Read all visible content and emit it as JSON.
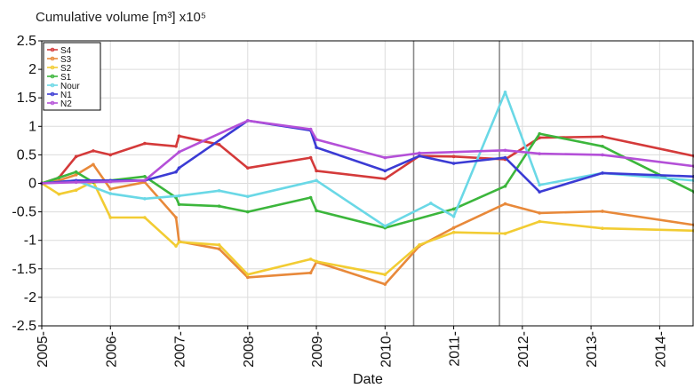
{
  "chart_data": {
    "type": "line",
    "title": "Cumulative volume [m³] x10⁵",
    "xlabel": "Date",
    "ylabel": "",
    "ylim": [
      -2.5,
      2.5
    ],
    "yticks": [
      "2.5",
      "2",
      "1.5",
      "1",
      "0.5",
      "0",
      "-0.5",
      "-1",
      "-1.5",
      "-2",
      "-2.5"
    ],
    "xlim": [
      "2005-01-01",
      "2014-07-01"
    ],
    "xticks": [
      "2005-",
      "2006-",
      "2007-",
      "2008-",
      "2009-",
      "2010-",
      "2011-",
      "2012-",
      "2013-",
      "2014-"
    ],
    "grid": true,
    "legend_position": "top-left",
    "vertical_lines": [
      "2010-06-01",
      "2011-09-01"
    ],
    "series": [
      {
        "name": "S4",
        "color": "#d43a3a",
        "x": [
          "2005-01-01",
          "2005-04-01",
          "2005-07-01",
          "2005-10-01",
          "2006-01-01",
          "2006-07-01",
          "2006-12-15",
          "2007-01-01",
          "2007-08-01",
          "2008-01-01",
          "2008-12-01",
          "2009-01-01",
          "2010-01-01",
          "2010-07-01",
          "2011-01-01",
          "2011-10-01",
          "2012-04-01",
          "2013-03-01",
          "2014-07-01"
        ],
        "y": [
          0,
          0.1,
          0.47,
          0.57,
          0.5,
          0.7,
          0.65,
          0.83,
          0.68,
          0.27,
          0.45,
          0.22,
          0.08,
          0.48,
          0.47,
          0.42,
          0.8,
          0.82,
          0.48
        ]
      },
      {
        "name": "S3",
        "color": "#e8893a",
        "x": [
          "2005-01-01",
          "2005-04-01",
          "2005-07-01",
          "2005-10-01",
          "2006-01-01",
          "2006-07-01",
          "2006-12-15",
          "2007-01-01",
          "2007-08-01",
          "2008-01-01",
          "2008-12-01",
          "2009-01-01",
          "2010-01-01",
          "2010-07-01",
          "2011-01-01",
          "2011-10-01",
          "2012-04-01",
          "2013-03-01",
          "2014-07-01"
        ],
        "y": [
          0,
          0.05,
          0.15,
          0.33,
          -0.1,
          0.02,
          -0.6,
          -1.02,
          -1.15,
          -1.65,
          -1.57,
          -1.38,
          -1.77,
          -1.1,
          -0.78,
          -0.36,
          -0.52,
          -0.49,
          -0.73
        ]
      },
      {
        "name": "S2",
        "color": "#f2cc33",
        "x": [
          "2005-01-01",
          "2005-04-01",
          "2005-07-01",
          "2005-10-01",
          "2006-01-01",
          "2006-07-01",
          "2006-12-15",
          "2007-01-01",
          "2007-08-01",
          "2008-01-01",
          "2008-12-01",
          "2009-01-01",
          "2010-01-01",
          "2010-07-01",
          "2011-01-01",
          "2011-10-01",
          "2012-04-01",
          "2013-03-01",
          "2014-07-01"
        ],
        "y": [
          0,
          -0.19,
          -0.12,
          0.03,
          -0.6,
          -0.6,
          -1.1,
          -1.03,
          -1.08,
          -1.6,
          -1.33,
          -1.37,
          -1.6,
          -1.08,
          -0.86,
          -0.88,
          -0.67,
          -0.79,
          -0.83
        ]
      },
      {
        "name": "S1",
        "color": "#3cb63c",
        "x": [
          "2005-01-01",
          "2005-04-01",
          "2005-07-01",
          "2005-10-01",
          "2006-01-01",
          "2006-07-01",
          "2006-12-15",
          "2007-01-01",
          "2007-08-01",
          "2008-01-01",
          "2008-12-01",
          "2009-01-01",
          "2010-01-01",
          "2011-01-01",
          "2011-10-01",
          "2012-04-01",
          "2013-03-01",
          "2014-07-01"
        ],
        "y": [
          0,
          0.1,
          0.2,
          0.02,
          0.05,
          0.12,
          -0.25,
          -0.37,
          -0.4,
          -0.5,
          -0.25,
          -0.48,
          -0.78,
          -0.45,
          -0.05,
          0.87,
          0.65,
          -0.15
        ]
      },
      {
        "name": "Nour",
        "color": "#6ad8e6",
        "x": [
          "2005-01-01",
          "2005-07-01",
          "2006-01-01",
          "2006-07-01",
          "2007-01-01",
          "2007-08-01",
          "2008-01-01",
          "2009-01-01",
          "2010-01-01",
          "2010-09-01",
          "2011-01-01",
          "2011-10-01",
          "2012-04-01",
          "2013-03-01",
          "2014-07-01"
        ],
        "y": [
          0,
          0.05,
          -0.18,
          -0.27,
          -0.22,
          -0.13,
          -0.23,
          0.05,
          -0.75,
          -0.35,
          -0.58,
          1.6,
          -0.03,
          0.18,
          0.05
        ]
      },
      {
        "name": "N1",
        "color": "#3b3bd4",
        "x": [
          "2005-01-01",
          "2005-07-01",
          "2006-01-01",
          "2006-07-01",
          "2006-12-15",
          "2007-01-01",
          "2008-01-01",
          "2008-12-01",
          "2009-01-01",
          "2010-01-01",
          "2010-07-01",
          "2011-01-01",
          "2011-10-01",
          "2012-04-01",
          "2013-03-01",
          "2014-07-01"
        ],
        "y": [
          0,
          0.05,
          0.05,
          0.05,
          0.2,
          0.27,
          1.1,
          0.93,
          0.63,
          0.22,
          0.48,
          0.35,
          0.45,
          -0.15,
          0.18,
          0.12
        ]
      },
      {
        "name": "N2",
        "color": "#b450d8",
        "x": [
          "2005-01-01",
          "2005-07-01",
          "2006-01-01",
          "2006-07-01",
          "2007-01-01",
          "2008-01-01",
          "2008-12-01",
          "2009-01-01",
          "2010-01-01",
          "2010-07-01",
          "2011-10-01",
          "2012-04-01",
          "2013-03-01",
          "2014-07-01"
        ],
        "y": [
          0,
          0.02,
          0.03,
          0.05,
          0.55,
          1.1,
          0.95,
          0.77,
          0.45,
          0.53,
          0.58,
          0.52,
          0.5,
          0.3
        ]
      }
    ]
  }
}
